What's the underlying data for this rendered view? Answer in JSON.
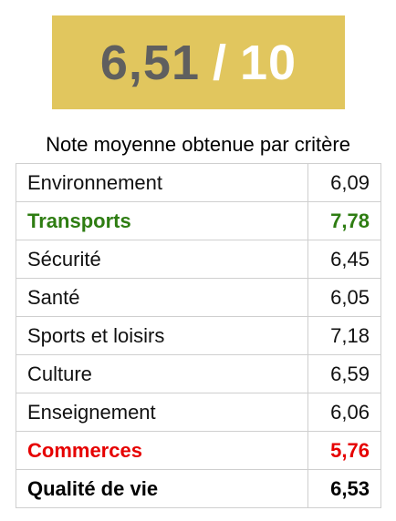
{
  "score": {
    "value": "6,51",
    "separator": "/",
    "max": "10"
  },
  "caption": "Note moyenne obtenue par critère",
  "criteria": [
    {
      "label": "Environnement",
      "value": "6,09"
    },
    {
      "label": "Transports",
      "value": "7,78"
    },
    {
      "label": "Sécurité",
      "value": "6,45"
    },
    {
      "label": "Santé",
      "value": "6,05"
    },
    {
      "label": "Sports et loisirs",
      "value": "7,18"
    },
    {
      "label": "Culture",
      "value": "6,59"
    },
    {
      "label": "Enseignement",
      "value": "6,06"
    },
    {
      "label": "Commerces",
      "value": "5,76"
    },
    {
      "label": "Qualité de vie",
      "value": "6,53"
    }
  ],
  "colors": {
    "score_background": "#e1c65e",
    "best_criterion": "#2e7d12",
    "worst_criterion": "#e60000"
  }
}
